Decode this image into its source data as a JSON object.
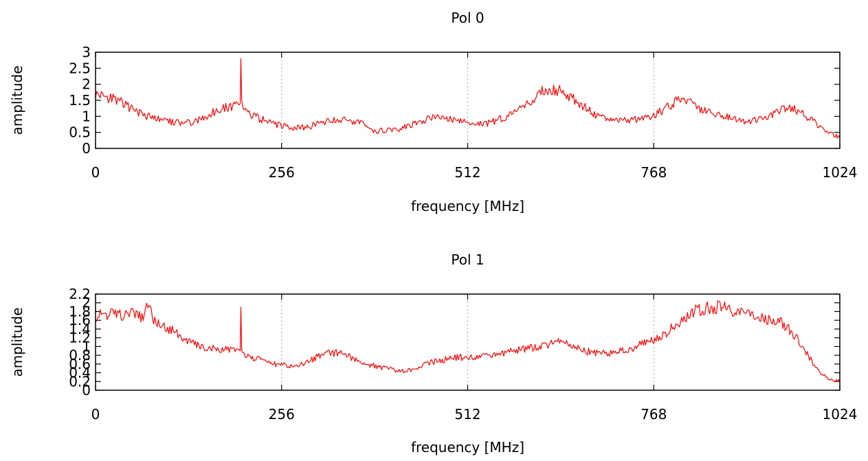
{
  "chart_data": [
    {
      "type": "line",
      "title": "Pol 0",
      "xlabel": "frequency [MHz]",
      "ylabel": "amplitude",
      "xlim": [
        0,
        1024
      ],
      "ylim": [
        0,
        3
      ],
      "xticks": [
        "0",
        "256",
        "512",
        "768",
        "1024"
      ],
      "yticks": [
        "0",
        "0.5",
        "1",
        "1.5",
        "2",
        "2.5",
        "3"
      ],
      "grid": "x-dotted",
      "color": "#ff0000",
      "series": [
        {
          "x": [
            0,
            16,
            32,
            48,
            64,
            80,
            96,
            112,
            128,
            144,
            160,
            176,
            192,
            199,
            200,
            201,
            208,
            224,
            240,
            256,
            272,
            288,
            304,
            320,
            336,
            352,
            368,
            384,
            400,
            416,
            432,
            448,
            464,
            480,
            496,
            512,
            528,
            544,
            560,
            576,
            592,
            608,
            624,
            640,
            656,
            672,
            688,
            704,
            720,
            736,
            752,
            768,
            784,
            800,
            816,
            832,
            848,
            864,
            880,
            896,
            912,
            928,
            944,
            960,
            976,
            992,
            1008,
            1024
          ],
          "y": [
            1.7,
            1.6,
            1.5,
            1.25,
            1.05,
            0.95,
            0.85,
            0.8,
            0.8,
            0.9,
            1.1,
            1.25,
            1.35,
            1.4,
            2.8,
            1.4,
            1.1,
            0.95,
            0.8,
            0.7,
            0.65,
            0.65,
            0.75,
            0.85,
            0.9,
            0.85,
            0.75,
            0.55,
            0.55,
            0.6,
            0.7,
            0.85,
            0.95,
            1.0,
            0.85,
            0.8,
            0.75,
            0.8,
            0.95,
            1.15,
            1.35,
            1.65,
            1.9,
            1.8,
            1.6,
            1.3,
            1.05,
            0.9,
            0.9,
            0.85,
            0.95,
            1.0,
            1.25,
            1.5,
            1.45,
            1.2,
            1.1,
            1.0,
            0.9,
            0.85,
            0.9,
            1.0,
            1.2,
            1.25,
            1.05,
            0.75,
            0.5,
            0.35
          ]
        }
      ]
    },
    {
      "type": "line",
      "title": "Pol 1",
      "xlabel": "frequency [MHz]",
      "ylabel": "amplitude",
      "xlim": [
        0,
        1024
      ],
      "ylim": [
        0,
        2.2
      ],
      "xticks": [
        "0",
        "256",
        "512",
        "768",
        "1024"
      ],
      "yticks": [
        "0",
        "0.2",
        "0.4",
        "0.6",
        "0.8",
        "1",
        "1.2",
        "1.4",
        "1.6",
        "1.8",
        "2",
        "2.2"
      ],
      "grid": "x-dotted",
      "color": "#ff0000",
      "series": [
        {
          "x": [
            0,
            16,
            32,
            48,
            64,
            72,
            80,
            96,
            112,
            128,
            144,
            160,
            176,
            192,
            199,
            200,
            201,
            208,
            224,
            240,
            256,
            272,
            288,
            304,
            320,
            336,
            352,
            368,
            384,
            400,
            416,
            432,
            448,
            464,
            480,
            496,
            512,
            528,
            544,
            560,
            576,
            592,
            608,
            624,
            640,
            656,
            672,
            688,
            704,
            720,
            736,
            752,
            768,
            784,
            800,
            816,
            832,
            848,
            864,
            880,
            896,
            912,
            928,
            944,
            960,
            976,
            992,
            1008,
            1024
          ],
          "y": [
            1.7,
            1.75,
            1.7,
            1.75,
            1.65,
            1.95,
            1.6,
            1.45,
            1.3,
            1.1,
            1.0,
            0.95,
            0.95,
            0.9,
            0.9,
            1.9,
            0.9,
            0.8,
            0.7,
            0.6,
            0.6,
            0.55,
            0.6,
            0.75,
            0.85,
            0.85,
            0.75,
            0.65,
            0.55,
            0.5,
            0.45,
            0.45,
            0.55,
            0.65,
            0.7,
            0.75,
            0.75,
            0.75,
            0.8,
            0.85,
            0.9,
            0.95,
            1.0,
            1.05,
            1.1,
            1.0,
            0.9,
            0.85,
            0.85,
            0.9,
            0.95,
            1.05,
            1.15,
            1.3,
            1.5,
            1.75,
            1.85,
            1.9,
            1.9,
            1.8,
            1.75,
            1.65,
            1.6,
            1.55,
            1.3,
            0.9,
            0.5,
            0.25,
            0.2
          ]
        }
      ]
    }
  ]
}
